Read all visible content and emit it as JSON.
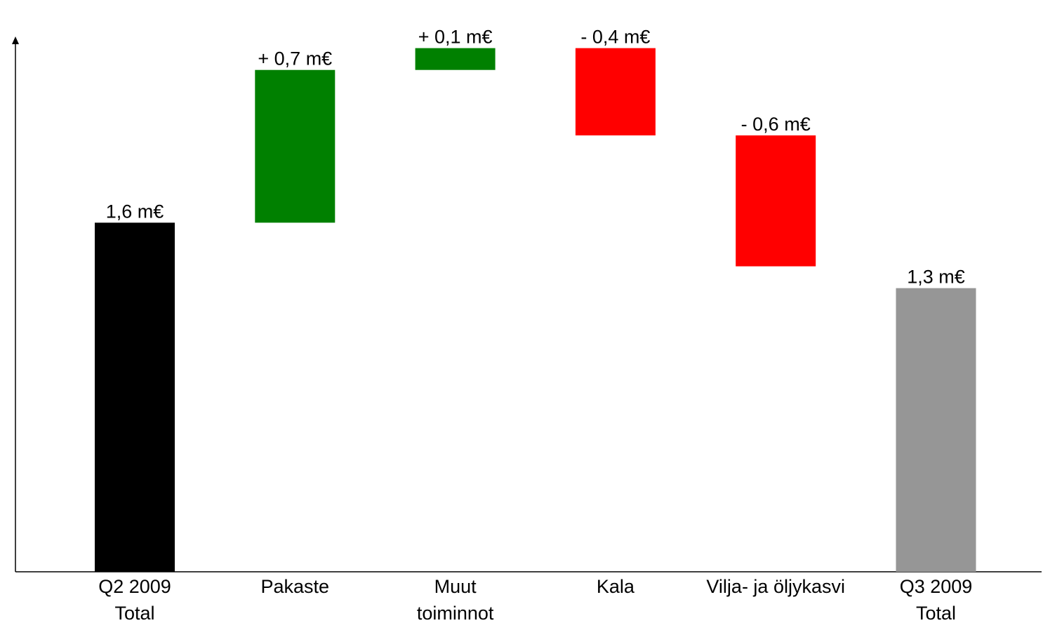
{
  "chart_data": {
    "type": "bar",
    "subtype": "waterfall",
    "categories": [
      [
        "Q2 2009",
        "Total"
      ],
      [
        "Pakaste"
      ],
      [
        "Muut",
        "toiminnot"
      ],
      [
        "Kala"
      ],
      [
        "Vilja- ja öljykasvi"
      ],
      [
        "Q3 2009",
        "Total"
      ]
    ],
    "steps": [
      {
        "kind": "total",
        "value": 1.6,
        "label": "1,6 m€",
        "color": "#000000"
      },
      {
        "kind": "delta",
        "value": 0.7,
        "label": "+ 0,7 m€",
        "color": "#008000"
      },
      {
        "kind": "delta",
        "value": 0.1,
        "label": "+ 0,1 m€",
        "color": "#008000"
      },
      {
        "kind": "delta",
        "value": -0.4,
        "label": "- 0,4 m€",
        "color": "#ff0000"
      },
      {
        "kind": "delta",
        "value": -0.6,
        "label": "- 0,6 m€",
        "color": "#ff0000"
      },
      {
        "kind": "total",
        "value": 1.3,
        "label": "1,3 m€",
        "color": "#969696"
      }
    ],
    "unit": "m€",
    "ylim": [
      0,
      2.4
    ],
    "grid": false,
    "legend": "none",
    "title": "",
    "xlabel": "",
    "ylabel": ""
  }
}
